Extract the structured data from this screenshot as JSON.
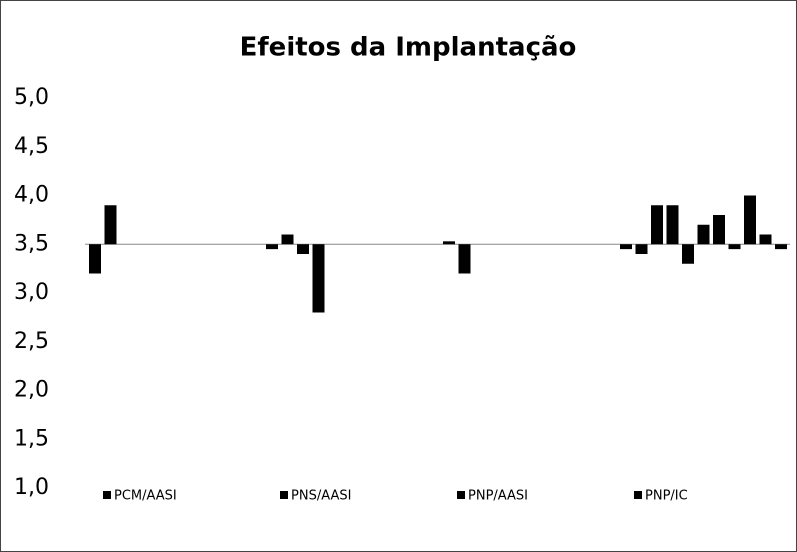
{
  "chart_data": {
    "type": "bar",
    "title": "Efeitos da Implantação",
    "baseline": 3.5,
    "color": "#000000",
    "groups": [
      {
        "name": "PCM/AASI",
        "values": [
          3.2,
          3.9
        ]
      },
      {
        "name": "PNS/AASI",
        "values": [
          3.45,
          3.6,
          3.4,
          2.8
        ]
      },
      {
        "name": "PNP/AASI",
        "values": [
          3.53,
          3.2
        ]
      },
      {
        "name": "PNP/IC",
        "values": [
          3.45,
          3.4,
          3.9,
          3.9,
          3.3,
          3.7,
          3.8,
          3.45,
          4.0,
          3.6,
          3.45
        ]
      }
    ],
    "ylim": [
      1,
      5
    ],
    "yticks": [
      {
        "value": 1,
        "label": "1,0"
      },
      {
        "value": 1.5,
        "label": "1,5"
      },
      {
        "value": 2,
        "label": "2,0"
      },
      {
        "value": 2.5,
        "label": "2,5"
      },
      {
        "value": 3,
        "label": "3,0"
      },
      {
        "value": 3.5,
        "label": "3,5"
      },
      {
        "value": 4,
        "label": "4,0"
      },
      {
        "value": 4.5,
        "label": "4,5"
      },
      {
        "value": 5,
        "label": "5,0"
      }
    ],
    "grid": false
  }
}
